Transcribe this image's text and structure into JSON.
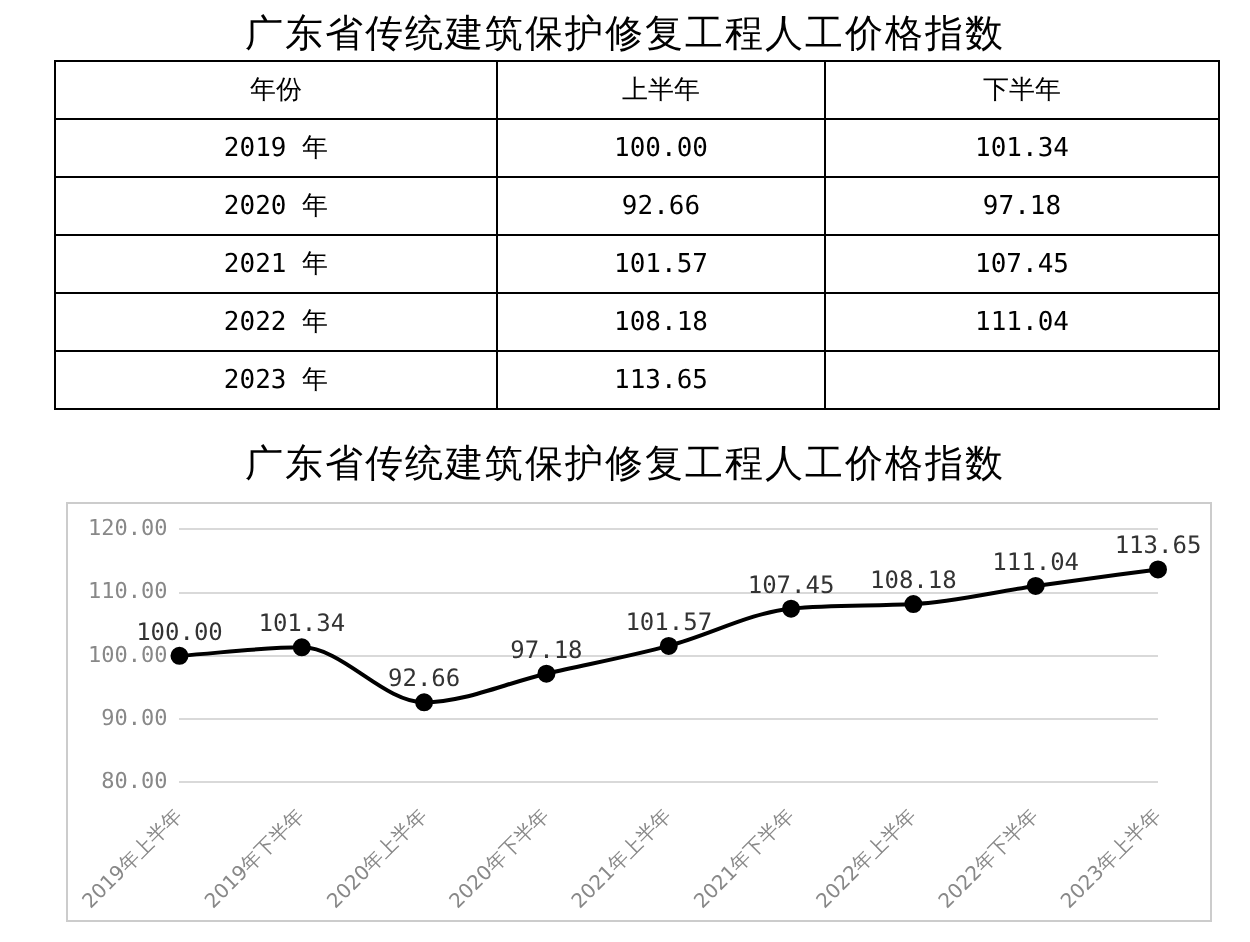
{
  "chart_data": [
    {
      "type": "heatmap",
      "title": "广东省传统建筑保护修复工程人工价格指数",
      "ylabel": "年份",
      "categories": [
        "上半年",
        "下半年"
      ],
      "y_categories": [
        "2019 年",
        "2020 年",
        "2021 年",
        "2022 年",
        "2023 年"
      ],
      "cells": [
        [
          100.0,
          101.34
        ],
        [
          92.66,
          97.18
        ],
        [
          101.57,
          107.45
        ],
        [
          108.18,
          111.04
        ],
        [
          113.65,
          null
        ]
      ],
      "cell_labels": [
        [
          "100.00",
          "101.34"
        ],
        [
          "92.66",
          "97.18"
        ],
        [
          "101.57",
          "107.45"
        ],
        [
          "108.18",
          "111.04"
        ],
        [
          "113.65",
          null
        ]
      ]
    },
    {
      "type": "line",
      "title": "广东省传统建筑保护修复工程人工价格指数",
      "categories": [
        "2019年上半年",
        "2019年下半年",
        "2020年上半年",
        "2020年下半年",
        "2021年上半年",
        "2021年下半年",
        "2022年上半年",
        "2022年下半年",
        "2023年上半年"
      ],
      "series": [
        {
          "color": "#000000",
          "values": [
            100.0,
            101.34,
            92.66,
            97.18,
            101.57,
            107.45,
            108.18,
            111.04,
            113.65
          ],
          "value_labels": [
            "100.00",
            "101.34",
            "92.66",
            "97.18",
            "101.57",
            "107.45",
            "108.18",
            "111.04",
            "113.65"
          ]
        }
      ],
      "ylim": [
        80,
        120
      ],
      "yticks": [
        {
          "value": 80,
          "label": "80.00"
        },
        {
          "value": 90,
          "label": "90.00"
        },
        {
          "value": 100,
          "label": "100.00"
        },
        {
          "value": 110,
          "label": "110.00"
        },
        {
          "value": 120,
          "label": "120.00"
        }
      ],
      "grid": "y",
      "marker": "circle",
      "line_style": "solid",
      "legend": false
    }
  ]
}
